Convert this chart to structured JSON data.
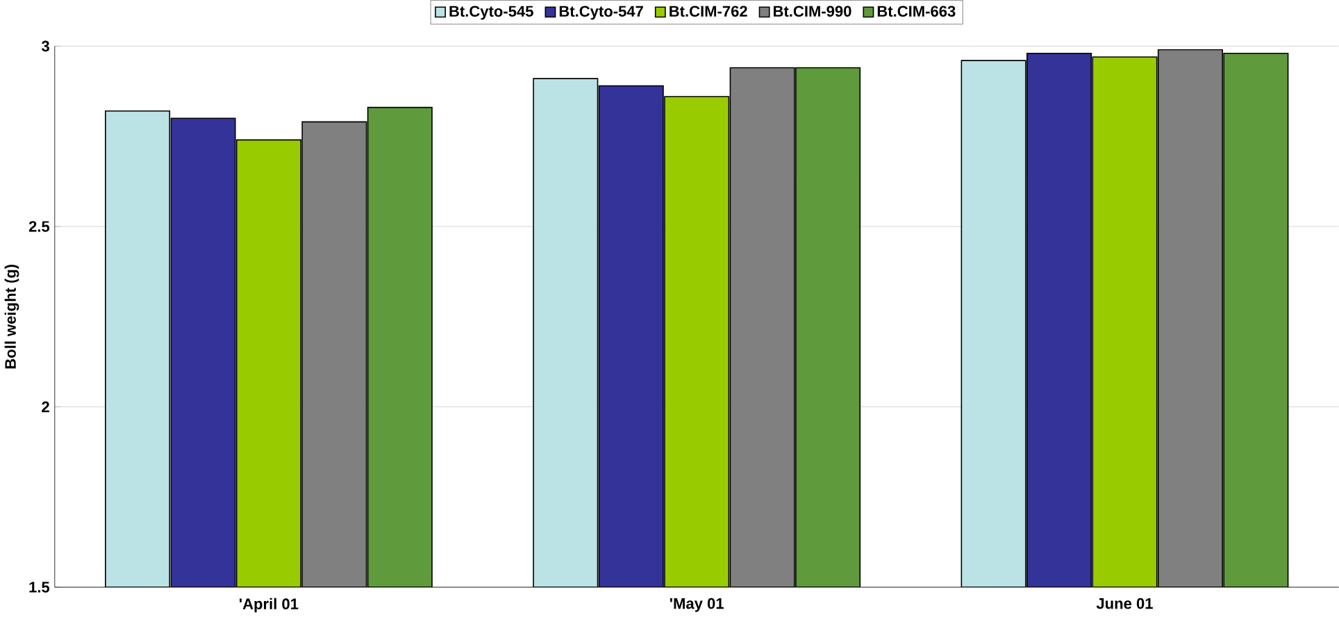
{
  "chart_data": {
    "type": "bar",
    "ylabel": "Boll weight (g)",
    "categories": [
      "'April 01",
      "'May 01",
      "June 01"
    ],
    "series": [
      {
        "name": "Bt.Cyto-545",
        "color": "#bbe2e4",
        "values": [
          2.82,
          2.91,
          2.96
        ]
      },
      {
        "name": "Bt.Cyto-547",
        "color": "#333399",
        "values": [
          2.8,
          2.89,
          2.98
        ]
      },
      {
        "name": "Bt.CIM-762",
        "color": "#99cc00",
        "values": [
          2.74,
          2.86,
          2.97
        ]
      },
      {
        "name": "Bt.CIM-990",
        "color": "#808080",
        "values": [
          2.79,
          2.94,
          2.99
        ]
      },
      {
        "name": "Bt.CIM-663",
        "color": "#5f9a3c",
        "values": [
          2.83,
          2.94,
          2.98
        ]
      }
    ],
    "ylim": [
      1.5,
      3
    ],
    "yticks": [
      1.5,
      2,
      2.5,
      3
    ],
    "grid": "y",
    "legend": "top"
  }
}
